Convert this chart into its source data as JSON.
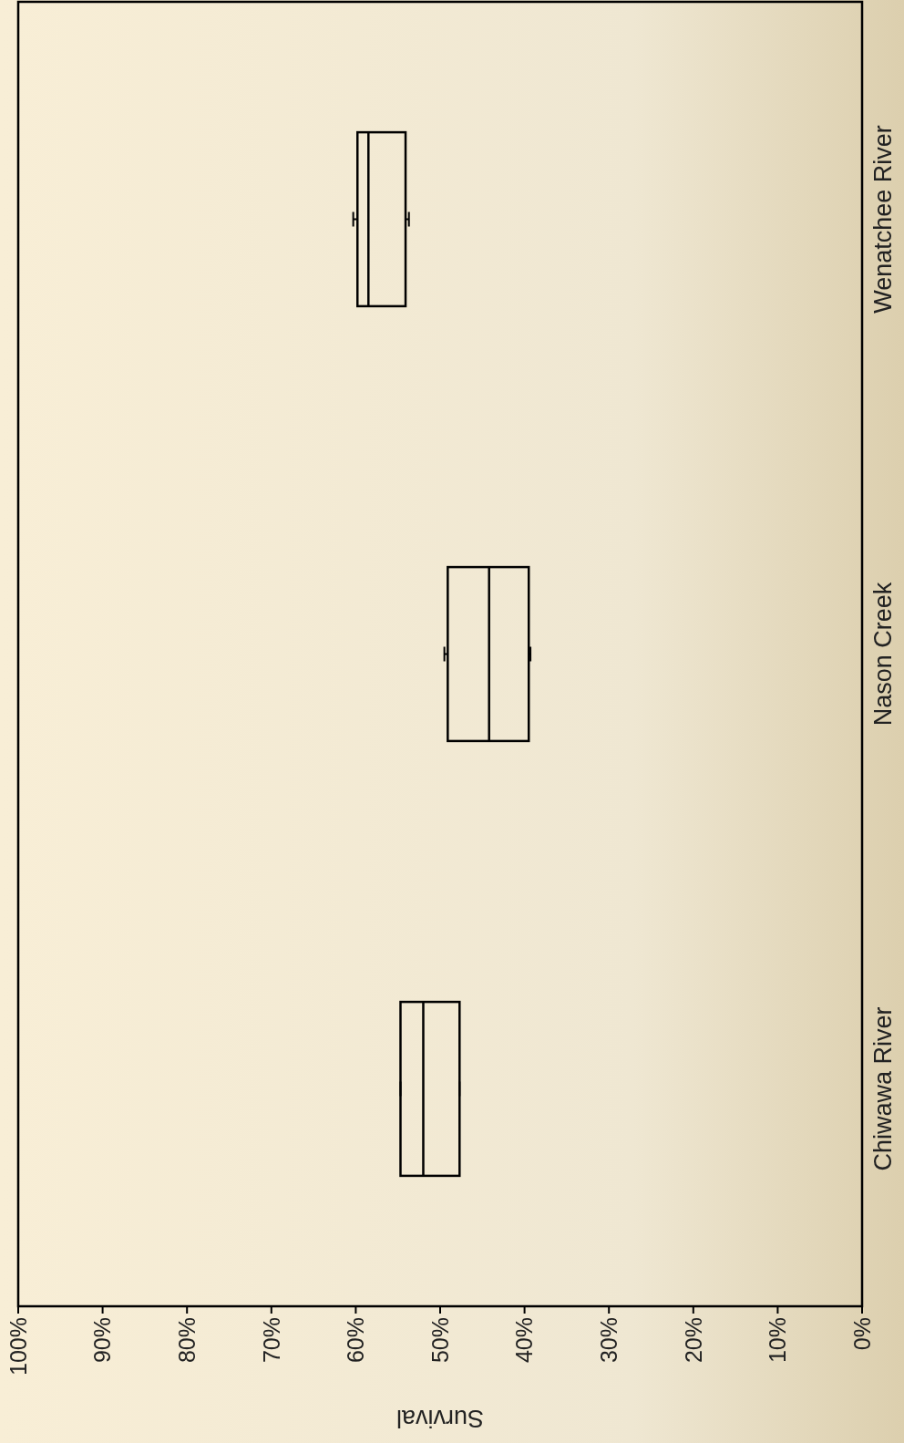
{
  "chart_data": {
    "type": "box",
    "orientation": "horizontal",
    "xlabel": "Survival",
    "categories": [
      "Wenatchee River",
      "Nason Creek",
      "Chiwawa River"
    ],
    "boxes": [
      {
        "low": 53.7,
        "q1": 54.1,
        "median": 58.5,
        "q3": 59.8,
        "high": 60.3
      },
      {
        "low": 39.3,
        "q1": 39.5,
        "median": 44.2,
        "q3": 49.1,
        "high": 49.5
      },
      {
        "low": 47.7,
        "q1": 47.7,
        "median": 52.0,
        "q3": 54.7,
        "high": 54.7
      }
    ],
    "xlim": [
      100,
      0
    ],
    "xticks": [
      {
        "value": 0,
        "label": "0%"
      },
      {
        "value": 10,
        "label": "10%"
      },
      {
        "value": 20,
        "label": "20%"
      },
      {
        "value": 30,
        "label": "30%"
      },
      {
        "value": 40,
        "label": "40%"
      },
      {
        "value": 50,
        "label": "50%"
      },
      {
        "value": 60,
        "label": "60%"
      },
      {
        "value": 70,
        "label": "70%"
      },
      {
        "value": 80,
        "label": "80%"
      },
      {
        "value": 90,
        "label": "90%"
      },
      {
        "value": 100,
        "label": "100%"
      }
    ],
    "grid": false
  }
}
